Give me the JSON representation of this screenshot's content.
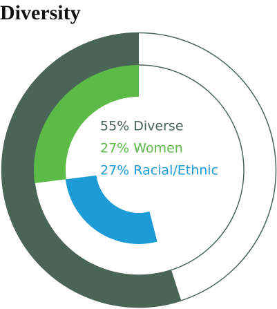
{
  "chart_data": {
    "type": "donut",
    "title": "Diversity",
    "values": [
      55,
      27,
      27
    ],
    "value_labels": [
      "55% Diverse",
      "27% Women",
      "27% Racial/Ethnic"
    ],
    "colors": [
      "#4b6458",
      "#5cba47",
      "#1c9bd7"
    ]
  }
}
